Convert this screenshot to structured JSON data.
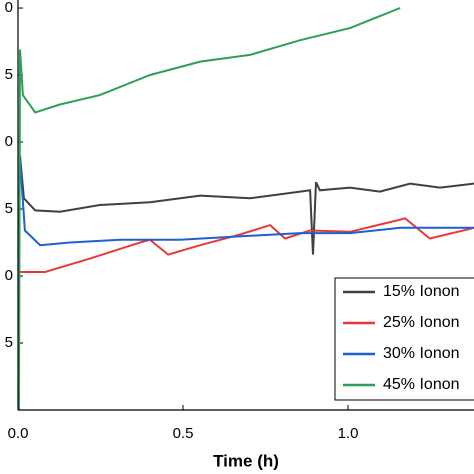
{
  "chart_data": {
    "type": "line",
    "xlabel": "Time (h)",
    "xlim": [
      0,
      1.38
    ],
    "xticks": [
      {
        "value": 0,
        "label": "0.0"
      },
      0.5,
      {
        "value": 1,
        "label": "1.0"
      }
    ],
    "ylim": [
      0,
      30.6
    ],
    "yticks": [
      5,
      {
        "value": 10,
        "label": "0"
      },
      {
        "value": 15,
        "label": "5"
      },
      {
        "value": 20,
        "label": "0"
      },
      {
        "value": 25,
        "label": "5"
      },
      {
        "value": 30,
        "label": "0"
      }
    ],
    "legend": "lower right",
    "series": [
      {
        "name": "15% Ionon",
        "color": "#404040",
        "x": [
          0.006,
          0.018,
          0.052,
          0.127,
          0.248,
          0.4,
          0.552,
          0.703,
          0.855,
          0.885,
          0.894,
          0.903,
          0.915,
          1.006,
          1.097,
          1.188,
          1.279,
          1.382
        ],
        "values": [
          19.0,
          15.8,
          14.9,
          14.8,
          15.3,
          15.5,
          16.0,
          15.8,
          16.3,
          16.4,
          11.6,
          17.0,
          16.4,
          16.6,
          16.3,
          16.9,
          16.6,
          16.9
        ]
      },
      {
        "name": "25% Ionon",
        "color": "#e8393a",
        "x": [
          0.006,
          0.082,
          0.218,
          0.37,
          0.4,
          0.455,
          0.552,
          0.673,
          0.764,
          0.809,
          0.885,
          1.006,
          1.158,
          1.173,
          1.248,
          1.382
        ],
        "values": [
          10.3,
          10.3,
          11.3,
          12.5,
          12.7,
          11.6,
          12.3,
          13.1,
          13.8,
          12.8,
          13.4,
          13.3,
          14.2,
          14.3,
          12.8,
          13.6
        ]
      },
      {
        "name": "30% Ionon",
        "color": "#1f5fd4",
        "x": [
          0.006,
          0.021,
          0.067,
          0.158,
          0.309,
          0.491,
          0.703,
          0.855,
          1.006,
          1.158,
          1.382
        ],
        "values": [
          18.7,
          13.4,
          12.3,
          12.5,
          12.7,
          12.7,
          13.0,
          13.2,
          13.2,
          13.6,
          13.6
        ]
      },
      {
        "name": "45% Ionon",
        "color": "#2ca05a",
        "x": [
          0.003,
          0.006,
          0.015,
          0.052,
          0.127,
          0.248,
          0.4,
          0.552,
          0.703,
          0.855,
          1.006,
          1.158
        ],
        "values": [
          0,
          26.9,
          23.5,
          22.2,
          22.8,
          23.5,
          25.0,
          26.0,
          26.5,
          27.6,
          28.5,
          30.0
        ]
      }
    ]
  }
}
